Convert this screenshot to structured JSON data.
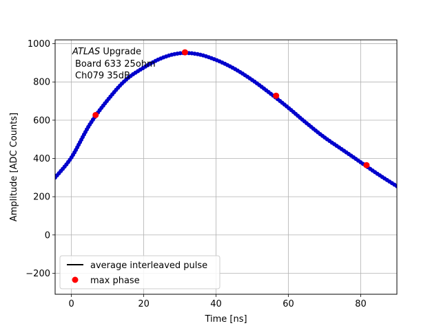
{
  "chart_data": {
    "type": "scatter",
    "title": "",
    "xlabel": "Time [ns]",
    "ylabel": "Amplitude [ADC Counts]",
    "xlim": [
      -4.5,
      90
    ],
    "ylim": [
      -310,
      1020
    ],
    "x_ticks": [
      0,
      20,
      40,
      60,
      80
    ],
    "x_tick_labels": [
      "0",
      "20",
      "40",
      "60",
      "80"
    ],
    "y_ticks": [
      -200,
      0,
      200,
      400,
      600,
      800,
      1000
    ],
    "y_tick_labels": [
      "−200",
      "0",
      "200",
      "400",
      "600",
      "800",
      "1000"
    ],
    "grid": true,
    "legend_position": "lower-left",
    "annotations": {
      "atlas": "ATLAS",
      "upgrade": " Upgrade",
      "line2": "Board 633 25ohm",
      "line3": "Ch079 35dB"
    },
    "series": [
      {
        "name": "average interleaved pulse",
        "kind": "line-with-samples",
        "color": "#000000",
        "marker_color": "#0000cc",
        "x": [
          -4.5,
          0,
          5,
          10,
          15,
          20,
          25,
          30,
          35,
          40,
          45,
          50,
          55,
          60,
          65,
          70,
          75,
          80,
          85,
          90
        ],
        "y": [
          300,
          405,
          575,
          705,
          810,
          875,
          925,
          950,
          945,
          915,
          870,
          810,
          740,
          665,
          585,
          510,
          445,
          380,
          315,
          255
        ]
      },
      {
        "name": "max phase",
        "kind": "points",
        "color": "#ff0000",
        "x": [
          6.7,
          31.4,
          56.6,
          81.6
        ],
        "y": [
          627,
          955,
          728,
          365
        ]
      }
    ]
  }
}
